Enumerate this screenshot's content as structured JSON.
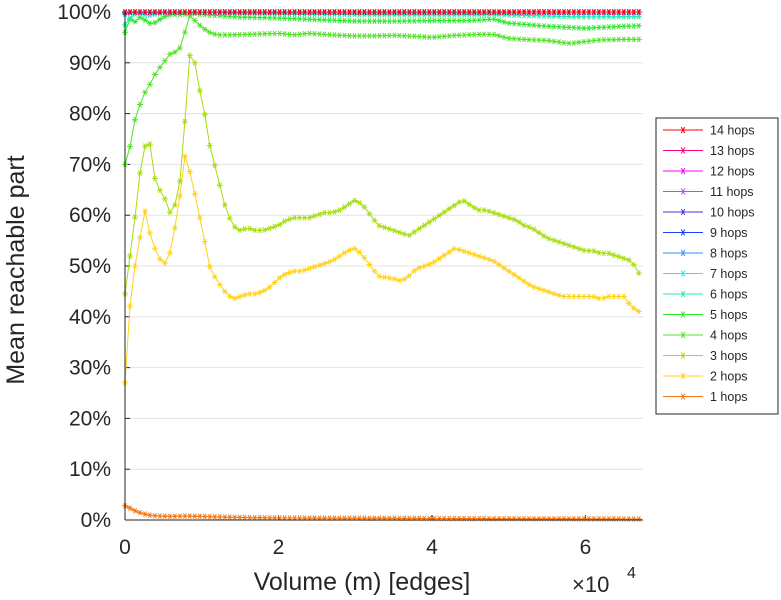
{
  "chart_data": {
    "type": "line",
    "xlabel": "Volume (m) [edges]",
    "ylabel": "Mean reachable part",
    "x_multiplier": {
      "base": "×10",
      "exponent": "4"
    },
    "xlim": [
      0,
      67500
    ],
    "ylim": [
      0,
      100
    ],
    "xticks": [
      0,
      20000,
      40000,
      60000
    ],
    "xtick_labels": [
      "0",
      "2",
      "4",
      "6"
    ],
    "yticks": [
      0,
      10,
      20,
      30,
      40,
      50,
      60,
      70,
      80,
      90,
      100
    ],
    "ytick_labels": [
      "0%",
      "10%",
      "20%",
      "30%",
      "40%",
      "50%",
      "60%",
      "70%",
      "80%",
      "90%",
      "100%"
    ],
    "grid": true,
    "legend_position": "right",
    "series": [
      {
        "name": "14 hops",
        "color": "#ff0000",
        "x": [
          0,
          67500
        ],
        "y": [
          100,
          100
        ]
      },
      {
        "name": "13 hops",
        "color": "#ff0080",
        "x": [
          0,
          67500
        ],
        "y": [
          100,
          100
        ]
      },
      {
        "name": "12 hops",
        "color": "#ff00ff",
        "x": [
          0,
          67500
        ],
        "y": [
          100,
          100
        ]
      },
      {
        "name": "11 hops",
        "color": "#b34dff",
        "x": [
          0,
          67500
        ],
        "y": [
          100,
          100
        ]
      },
      {
        "name": "10 hops",
        "color": "#5a2bd9",
        "x": [
          0,
          67500
        ],
        "y": [
          100,
          100
        ]
      },
      {
        "name": "9 hops",
        "color": "#1c3cff",
        "x": [
          0,
          67500
        ],
        "y": [
          100,
          100
        ]
      },
      {
        "name": "8 hops",
        "color": "#2f8fff",
        "x": [
          0,
          1000,
          3000,
          5000,
          10000,
          67500
        ],
        "y": [
          99.8,
          100,
          99.9,
          100,
          100,
          100
        ]
      },
      {
        "name": "7 hops",
        "color": "#1fe8ff",
        "x": [
          0,
          1000,
          2000,
          3000,
          4000,
          6000,
          8000,
          10000,
          20000,
          30000,
          40000,
          50000,
          60000,
          67500
        ],
        "y": [
          99.5,
          99.9,
          99.7,
          99.4,
          99.8,
          99.9,
          100,
          99.9,
          99.8,
          99.7,
          99.8,
          99.7,
          99.6,
          99.6
        ]
      },
      {
        "name": "6 hops",
        "color": "#20f0a0",
        "x": [
          0,
          1000,
          2000,
          3000,
          4000,
          5000,
          6000,
          8000,
          10000,
          15000,
          20000,
          30000,
          40000,
          48000,
          55000,
          60000,
          67500
        ],
        "y": [
          97.5,
          99.5,
          99.7,
          99.3,
          99.6,
          99.8,
          99.7,
          99.9,
          99.9,
          99.7,
          99.6,
          99.5,
          99.4,
          99.5,
          99.2,
          99.0,
          99.1
        ]
      },
      {
        "name": "5 hops",
        "color": "#2ee82e",
        "x": [
          0,
          500,
          1000,
          1500,
          2000,
          2500,
          3000,
          3500,
          4000,
          5000,
          6000,
          7000,
          8000,
          9000,
          10000,
          12000,
          15000,
          20000,
          25000,
          30000,
          35000,
          40000,
          45000,
          48000,
          50000,
          55000,
          60000,
          65000,
          67500
        ],
        "y": [
          96,
          99,
          97.5,
          98.5,
          99,
          98.5,
          98,
          97.5,
          98,
          99,
          99.5,
          99.5,
          99.6,
          99.7,
          99.5,
          99.3,
          99.0,
          98.8,
          98.5,
          98.2,
          98.2,
          98.3,
          98.3,
          98.6,
          97.8,
          97.2,
          96.8,
          97.2,
          97.3
        ]
      },
      {
        "name": "4 hops",
        "color": "#55e02c",
        "x": [
          0,
          500,
          1000,
          1500,
          2000,
          2500,
          3000,
          3500,
          4000,
          4500,
          5000,
          5500,
          6000,
          7000,
          8000,
          8500,
          9000,
          10000,
          11000,
          12000,
          14000,
          16000,
          18000,
          20000,
          22000,
          24000,
          26000,
          28000,
          30000,
          32000,
          35000,
          38000,
          40000,
          43000,
          46000,
          48000,
          50000,
          52000,
          55000,
          58000,
          60000,
          62000,
          65000,
          67500
        ],
        "y": [
          70,
          72,
          77,
          80,
          82,
          84,
          85,
          86.5,
          88,
          89,
          90,
          91,
          92,
          92.2,
          97,
          99.5,
          98.5,
          97,
          96,
          95.5,
          95.5,
          95.6,
          95.7,
          95.8,
          95.5,
          95.8,
          95.6,
          95.4,
          95.3,
          95.3,
          95.4,
          95.2,
          95.0,
          95.4,
          95.6,
          95.6,
          94.8,
          94.6,
          94.4,
          93.8,
          94.2,
          94.5,
          94.6,
          94.6
        ]
      },
      {
        "name": "3 hops",
        "color": "#a5dd10",
        "x": [
          0,
          1000,
          1500,
          2000,
          2500,
          3000,
          3500,
          4000,
          5000,
          6000,
          7000,
          8000,
          8500,
          9000,
          9500,
          10000,
          10500,
          11000,
          12000,
          13000,
          14000,
          15000,
          16000,
          17000,
          18000,
          19000,
          20000,
          21000,
          22000,
          23000,
          24000,
          25000,
          26000,
          27000,
          28000,
          29000,
          30000,
          31000,
          32000,
          33000,
          35000,
          36000,
          37000,
          38000,
          40000,
          41000,
          42000,
          43000,
          44000,
          45000,
          46000,
          47000,
          48000,
          49000,
          50000,
          51000,
          52000,
          53000,
          54000,
          55000,
          56000,
          57000,
          58000,
          59000,
          60000,
          61000,
          62000,
          63000,
          64000,
          65000,
          66000,
          67000
        ],
        "y": [
          44.5,
          56,
          62,
          69,
          73,
          76,
          72,
          66,
          64,
          60,
          64,
          82,
          92.5,
          91,
          86,
          83,
          79,
          74,
          68,
          62,
          58,
          57,
          57.5,
          57,
          57,
          57.5,
          58,
          59,
          59.5,
          59.5,
          59.5,
          60,
          60.5,
          60.5,
          61,
          62,
          63,
          62,
          60,
          58,
          57,
          56.5,
          56,
          57,
          59,
          60,
          61,
          62,
          63,
          62,
          61,
          61,
          60.5,
          60,
          59.5,
          59,
          58,
          57.5,
          56.5,
          55.5,
          55,
          54.5,
          54,
          53.5,
          53,
          53,
          52.5,
          52.5,
          52,
          51.5,
          51,
          48.5
        ]
      },
      {
        "name": "2 hops",
        "color": "#ffd21a",
        "x": [
          0,
          500,
          1000,
          1500,
          2000,
          2500,
          3000,
          3500,
          4000,
          5000,
          6000,
          7000,
          8000,
          8500,
          9000,
          9500,
          10000,
          10500,
          11000,
          12000,
          13000,
          14000,
          15000,
          16000,
          17000,
          18000,
          19000,
          20000,
          21000,
          22000,
          23000,
          24000,
          25000,
          26000,
          27000,
          28000,
          29000,
          30000,
          31000,
          32000,
          33000,
          35000,
          36000,
          37000,
          38000,
          40000,
          41000,
          42000,
          43000,
          44000,
          45000,
          46000,
          47000,
          48000,
          49000,
          50000,
          51000,
          52000,
          53000,
          54000,
          55000,
          56000,
          57000,
          58000,
          59000,
          60000,
          61000,
          62000,
          63000,
          64000,
          65000,
          66000,
          67000
        ],
        "y": [
          27,
          40,
          47,
          52,
          56,
          61.5,
          58,
          55,
          53,
          50,
          53,
          62,
          74,
          68,
          65,
          61,
          58,
          54,
          50,
          47,
          45,
          43.5,
          44,
          44.5,
          44.5,
          45,
          46,
          47.5,
          48.5,
          49,
          49,
          49.5,
          50,
          50.5,
          51,
          52,
          53,
          53.5,
          52,
          50,
          48,
          47.5,
          47,
          48,
          49.5,
          50.5,
          51.5,
          52.5,
          53.5,
          53,
          52.5,
          52,
          51.5,
          51,
          50,
          49,
          48,
          47,
          46,
          45.5,
          45,
          44.5,
          44,
          44,
          44,
          44,
          44,
          43.5,
          44,
          44,
          44,
          42,
          41
        ]
      },
      {
        "name": "1 hops",
        "color": "#f07818",
        "x": [
          0,
          500,
          1000,
          1500,
          2000,
          3000,
          4000,
          6000,
          8000,
          10000,
          15000,
          20000,
          30000,
          40000,
          50000,
          60000,
          67500
        ],
        "y": [
          2.8,
          2.5,
          2.0,
          1.7,
          1.4,
          1.0,
          0.8,
          0.7,
          0.8,
          0.7,
          0.5,
          0.4,
          0.35,
          0.3,
          0.25,
          0.22,
          0.2
        ]
      }
    ]
  }
}
